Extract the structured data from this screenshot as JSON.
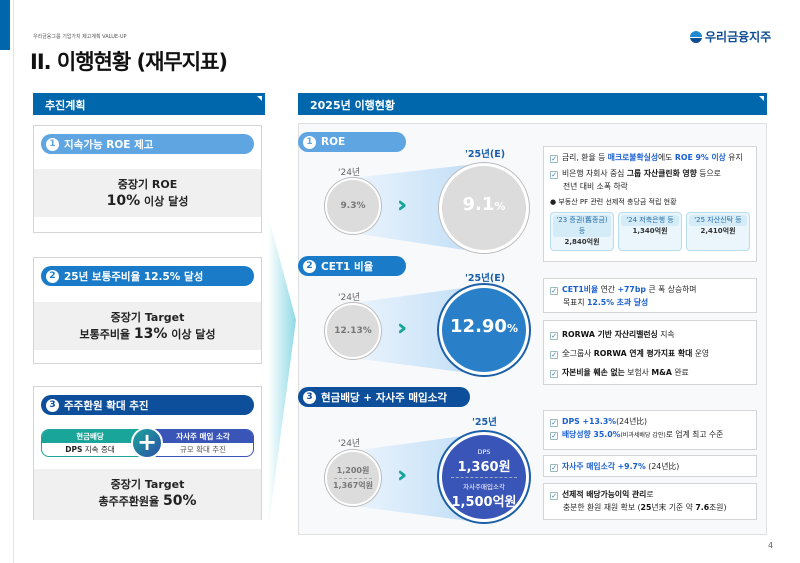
{
  "header": {
    "breadcrumb": "우리금융그룹 기업가치 제고계획 VALUE-UP",
    "title": "II. 이행현황 (재무지표)",
    "logo": "우리금융지주"
  },
  "left": {
    "header": "추진계획",
    "items": [
      {
        "num": "1",
        "title": "지속가능 ROE 제고",
        "line1": "중장기 ROE",
        "line2_big": "10%",
        "line2_rest": " 이상 달성",
        "color": "#5ea5e2"
      },
      {
        "num": "2",
        "title": "25년 보통주비율 12.5% 달성",
        "line1": "중장기 Target",
        "line2_pre": "보통주비율 ",
        "line2_big": "13%",
        "line2_rest": " 이상 달성",
        "color": "#1a7cc8"
      },
      {
        "num": "3",
        "title": "주주환원 확대 추진",
        "line1": "중장기 Target",
        "line2_pre": "총주주환원율 ",
        "line2_big": "50%",
        "color": "#0d4f9a",
        "cash": {
          "label": "현금배당",
          "desc_b": "DPS",
          "desc": " 지속 증대"
        },
        "buyback": {
          "label": "자사주 매입 소각",
          "desc": "규모 확대 추진"
        }
      }
    ]
  },
  "right": {
    "header": "2025년 이행현황",
    "roe": {
      "num": "1",
      "title": "ROE",
      "prev_year": "'24년",
      "prev": "9.3%",
      "cur_year": "'25년(E)",
      "cur": "9.1",
      "cur_unit": "%",
      "bullets": [
        {
          "pre": "금리, 환율 등 ",
          "hl": "매크로불확실성",
          "mid": "에도 ",
          "hl2": "ROE 9% 이상",
          "post": " 유지"
        },
        {
          "pre": "비은행 자회사 중심 ",
          "b": "그룹 자산클린화 영향",
          "post": " 등으로",
          "line2": "전년 대비 소폭 하락"
        }
      ],
      "note": "● 부동산 PF 관련 선제적 충당금 적립 현황",
      "chips": [
        {
          "t": "'23 증권(舊종금) 등",
          "v": "2,840억원"
        },
        {
          "t": "'24 저축은행 등",
          "v": "1,340억원"
        },
        {
          "t": "'25 자산신탁 등",
          "v": "2,410억원"
        }
      ]
    },
    "cet1": {
      "num": "2",
      "title": "CET1 비율",
      "prev_year": "'24년",
      "prev": "12.13%",
      "cur_year": "'25년(E)",
      "cur": "12.90",
      "cur_unit": "%",
      "box1": {
        "hl": "CET1비율",
        "mid": " 연간 ",
        "hl2": "+77bp",
        "post": " 큰 폭 상승하며",
        "line2_pre": "목표치 ",
        "line2_hl": "12.5% 초과 달성"
      },
      "box2": [
        {
          "b": "RORWA 기반 자산리밸런싱",
          "post": " 지속"
        },
        {
          "pre": "全그룹사 ",
          "b": "RORWA 연계 평가지표 확대",
          "post": " 운영"
        },
        {
          "b": "자본비율 훼손 없는",
          "mid": " 보험사 ",
          "b2": "M&A",
          "post": " 완료"
        }
      ]
    },
    "shr": {
      "num": "3",
      "title": "현금배당 + 자사주 매입소각",
      "prev_year": "'24년",
      "prev1": "1,200원",
      "prev2": "1,367억원",
      "cur_year": "'25년",
      "cur_l1": "DPS",
      "cur_v1": "1,360원",
      "cur_l2": "자사주매입소각",
      "cur_v2": "1,500억원",
      "b1": [
        {
          "hl": "DPS  +13.3%",
          "post": "(24년比)"
        },
        {
          "hl": "배당성향 35.0%",
          "small": "(비과세배당 감안)",
          "post": "로 업계 최고 수준"
        }
      ],
      "b2": {
        "hl": "자사주 매입소각 +9.7%",
        "post": " (24년比)"
      },
      "b3": {
        "b": "선제적 배당가능이익 관리",
        "post": "로",
        "line2_pre": "충분한 환원 재원 확보 (",
        "line2_b": "25",
        "line2_mid": "년末 기준 약 ",
        "line2_b2": "7.6",
        "line2_post": "조원)"
      }
    }
  },
  "page": "4",
  "colors": {
    "brand": "#0067ac",
    "teal": "#1aa59a",
    "roe_pill": "#5ea5e2",
    "cet1_pill": "#1a7cc8",
    "shr_pill": "#0d4f9a"
  }
}
